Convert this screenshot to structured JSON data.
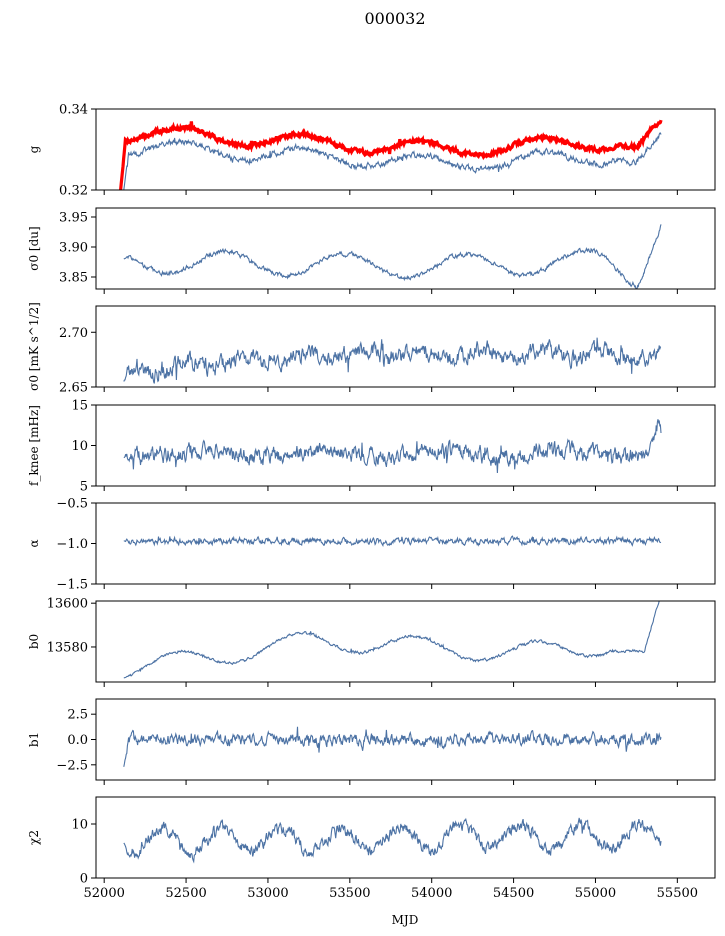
{
  "title": "000032",
  "xlabel": "MJD",
  "xlim": [
    51950,
    55730
  ],
  "xticks": [
    52000,
    52500,
    53000,
    53500,
    54000,
    54500,
    55000,
    55500
  ],
  "colors": {
    "series": "#4c72a4",
    "overlay": "#ff0000",
    "axes": "#000000"
  },
  "panels": [
    {
      "id": "g",
      "ylabel": "g",
      "ylim": [
        0.32,
        0.34
      ],
      "yticks": [
        {
          "v": 0.32,
          "label": "0.32"
        },
        {
          "v": 0.34,
          "label": "0.34"
        }
      ],
      "base": 0.328,
      "drift": [
        [
          52150,
          0.0025
        ],
        [
          52300,
          0.0025
        ],
        [
          54100,
          -0.0015
        ],
        [
          55150,
          0.0005
        ],
        [
          55250,
          -0.0015
        ],
        [
          55400,
          0.004
        ]
      ],
      "amp": 0.0018,
      "period": 730,
      "phase": 52300,
      "noise": 0.0006,
      "spike": 0.0012,
      "start": 52120,
      "startFrom": 0.32,
      "end": 55400,
      "overlay": {
        "offset": 0.0035,
        "noise": 0.0004,
        "start": 52100,
        "startFrom": 0.32
      }
    },
    {
      "id": "sigma0_du",
      "ylabel": "σ0 [du]",
      "ylim": [
        3.83,
        3.965
      ],
      "yticks": [
        {
          "v": 3.85,
          "label": "3.85"
        },
        {
          "v": 3.9,
          "label": "3.90"
        },
        {
          "v": 3.95,
          "label": "3.95"
        }
      ],
      "base": 3.872,
      "drift": [
        [
          52150,
          0.004
        ],
        [
          54000,
          -0.005
        ],
        [
          55050,
          0.005
        ],
        [
          55250,
          -0.025
        ],
        [
          55400,
          0.075
        ]
      ],
      "amp": 0.019,
      "period": 730,
      "phase": 52560,
      "noise": 0.003,
      "spike": 0.004,
      "start": 52120,
      "startFrom": 3.88,
      "end": 55400
    },
    {
      "id": "sigma0_mk",
      "ylabel": "σ0 [mK s^1/2]",
      "ylim": [
        2.65,
        2.724
      ],
      "yticks": [
        {
          "v": 2.65,
          "label": "2.65"
        },
        {
          "v": 2.7,
          "label": "2.70"
        }
      ],
      "base": 2.678,
      "drift": [
        [
          52150,
          -0.014
        ],
        [
          52700,
          -0.006
        ],
        [
          53500,
          0.002
        ],
        [
          54500,
          0.002
        ],
        [
          55400,
          0.0
        ]
      ],
      "amp": 0.004,
      "period": 365,
      "phase": 52400,
      "noise": 0.006,
      "spike": 0.012,
      "start": 52120,
      "startFrom": 2.655,
      "end": 55400
    },
    {
      "id": "fknee",
      "ylabel": "f_knee [mHz]",
      "ylim": [
        5,
        15
      ],
      "yticks": [
        {
          "v": 5,
          "label": "5"
        },
        {
          "v": 10,
          "label": "10"
        },
        {
          "v": 15,
          "label": "15"
        }
      ],
      "base": 9.0,
      "drift": [
        [
          52150,
          0.0
        ],
        [
          55300,
          0.0
        ],
        [
          55380,
          3.5
        ],
        [
          55400,
          2.5
        ]
      ],
      "amp": 0.4,
      "period": 730,
      "phase": 52400,
      "noise": 0.8,
      "spike": 1.2,
      "start": 52120,
      "startFrom": 8.5,
      "end": 55400
    },
    {
      "id": "alpha",
      "ylabel": "α",
      "ylim": [
        -1.5,
        -0.5
      ],
      "yticks": [
        {
          "v": -1.5,
          "label": "−1.5"
        },
        {
          "v": -1.0,
          "label": "−1.0"
        },
        {
          "v": -0.5,
          "label": "−0.5"
        }
      ],
      "base": -0.97,
      "drift": [
        [
          52150,
          0.0
        ],
        [
          55400,
          0.0
        ]
      ],
      "amp": 0.0,
      "period": 730,
      "phase": 52400,
      "noise": 0.03,
      "spike": 0.06,
      "start": 52120,
      "startFrom": -0.97,
      "end": 55400
    },
    {
      "id": "b0",
      "ylabel": "b0",
      "ylim": [
        13564,
        13601
      ],
      "yticks": [
        {
          "v": 13580,
          "label": "13580"
        },
        {
          "v": 13600,
          "label": "13600"
        }
      ],
      "base": 13578,
      "drift": [
        [
          52150,
          -8
        ],
        [
          53300,
          5
        ],
        [
          53800,
          3
        ],
        [
          54500,
          -1
        ],
        [
          55100,
          3
        ],
        [
          55300,
          -4
        ],
        [
          55400,
          22
        ]
      ],
      "amp": 4.5,
      "period": 730,
      "phase": 52260,
      "noise": 0.5,
      "spike": 1.2,
      "start": 52120,
      "startFrom": 13566,
      "end": 55400
    },
    {
      "id": "b1",
      "ylabel": "b1",
      "ylim": [
        -4,
        4
      ],
      "yticks": [
        {
          "v": -2.5,
          "label": "−2.5"
        },
        {
          "v": 0,
          "label": "0.0"
        },
        {
          "v": 2.5,
          "label": "2.5"
        }
      ],
      "base": 0.0,
      "drift": [
        [
          52150,
          0.0
        ],
        [
          55400,
          0.0
        ]
      ],
      "amp": 0.0,
      "period": 730,
      "phase": 52400,
      "noise": 0.45,
      "spike": 1.0,
      "start": 52120,
      "startFrom": -2.7,
      "end": 55400
    },
    {
      "id": "chi2",
      "ylabel": "χ2",
      "ylim": [
        0,
        15
      ],
      "yticks": [
        {
          "v": 0,
          "label": "0"
        },
        {
          "v": 10,
          "label": "10"
        }
      ],
      "base": 6.8,
      "drift": [
        [
          52150,
          0.0
        ],
        [
          55400,
          1.0
        ]
      ],
      "amp": 2.2,
      "period": 365,
      "phase": 52260,
      "noise": 0.9,
      "spike": 1.6,
      "start": 52120,
      "startFrom": 6.5,
      "end": 55400
    }
  ]
}
